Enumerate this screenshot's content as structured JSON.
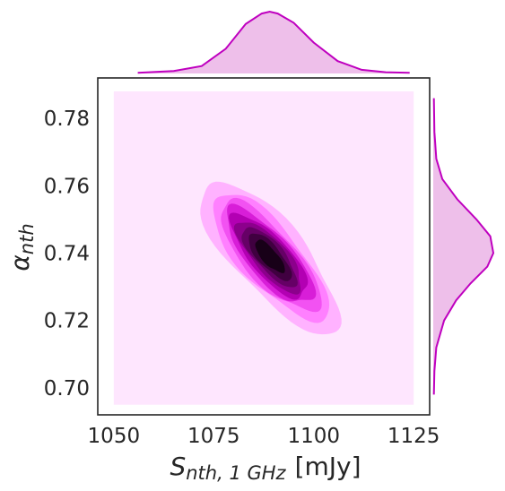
{
  "chart_data": {
    "type": "kde-joint",
    "xlabel": {
      "symbol": "S",
      "subscript": "nth, 1 GHz",
      "unit": "[mJy]"
    },
    "ylabel": {
      "symbol": "α",
      "subscript": "nth"
    },
    "xlim": [
      1046,
      1129
    ],
    "ylim": [
      0.692,
      0.792
    ],
    "x_ticks": [
      1050,
      1075,
      1100,
      1125
    ],
    "y_ticks": [
      0.7,
      0.72,
      0.74,
      0.76,
      0.78
    ],
    "x_tick_labels": [
      "1050",
      "1075",
      "1100",
      "1125"
    ],
    "y_tick_labels": [
      "0.70",
      "0.72",
      "0.74",
      "0.76",
      "0.78"
    ],
    "grid": false,
    "colors": {
      "line": "#bf00bf",
      "marginal_fill": "#eebfea",
      "levels": [
        "#fee6fe",
        "#ffb2ff",
        "#ff80ff",
        "#f252f2",
        "#d81ed8",
        "#b300b3",
        "#8c008c",
        "#660066",
        "#400040",
        "#180018"
      ]
    },
    "joint_kde": {
      "support": {
        "x": [
          1050,
          1125
        ],
        "y": [
          0.695,
          0.788
        ]
      },
      "peak": {
        "x": 1089,
        "y": 0.739
      },
      "sigma_x": 8.0,
      "sigma_y": 0.0105,
      "correlation": -0.8
    },
    "marginal_x": {
      "x": [
        1056,
        1065,
        1072,
        1078,
        1083,
        1087,
        1089,
        1091,
        1095,
        1100,
        1106,
        1112,
        1118,
        1124
      ],
      "density": [
        0.01,
        0.04,
        0.12,
        0.4,
        0.8,
        0.97,
        1.0,
        0.97,
        0.82,
        0.5,
        0.2,
        0.06,
        0.02,
        0.01
      ]
    },
    "marginal_y": {
      "y": [
        0.698,
        0.705,
        0.712,
        0.72,
        0.726,
        0.731,
        0.736,
        0.74,
        0.745,
        0.75,
        0.756,
        0.762,
        0.768,
        0.776,
        0.786
      ],
      "density": [
        0.01,
        0.02,
        0.05,
        0.18,
        0.38,
        0.62,
        0.9,
        1.0,
        0.95,
        0.72,
        0.4,
        0.15,
        0.05,
        0.02,
        0.01
      ]
    }
  }
}
